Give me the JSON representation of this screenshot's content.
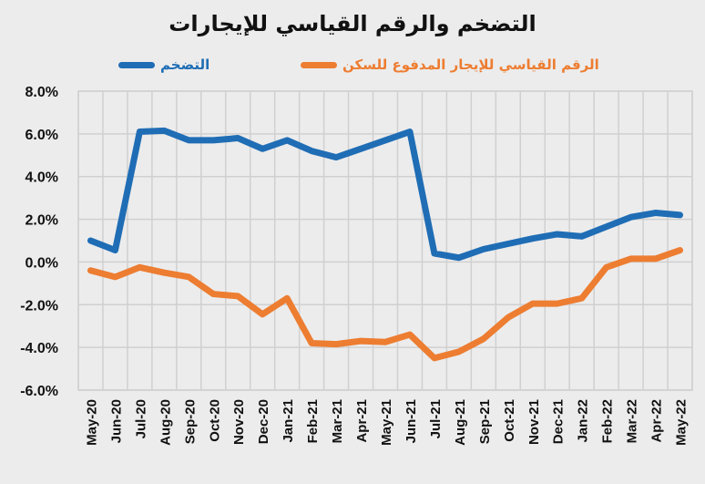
{
  "chart_data": {
    "type": "line",
    "title": "التضخم والرقم القياسي للإيجارات",
    "xlabel": "",
    "ylabel": "",
    "ylim": [
      -6,
      8
    ],
    "yticks": [
      8,
      6,
      4,
      2,
      0,
      -2,
      -4,
      -6
    ],
    "ytick_labels": [
      "8.0%",
      "6.0%",
      "4.0%",
      "2.0%",
      "0.0%",
      "-2.0%",
      "-4.0%",
      "-6.0%"
    ],
    "grid": true,
    "legend_position": "top",
    "categories": [
      "May-20",
      "Jun-20",
      "Jul-20",
      "Aug-20",
      "Sep-20",
      "Oct-20",
      "Nov-20",
      "Dec-20",
      "Jan-21",
      "Feb-21",
      "Mar-21",
      "Apr-21",
      "May-21",
      "Jun-21",
      "Jul-21",
      "Aug-21",
      "Sep-21",
      "Oct-21",
      "Nov-21",
      "Dec-21",
      "Jan-22",
      "Feb-22",
      "Mar-22",
      "Apr-22",
      "May-22"
    ],
    "series": [
      {
        "name": "التضخم",
        "color": "#1f6db5",
        "values": [
          1.0,
          0.55,
          6.1,
          6.15,
          5.7,
          5.7,
          5.8,
          5.3,
          5.7,
          5.2,
          4.9,
          5.3,
          5.7,
          6.1,
          0.4,
          0.2,
          0.6,
          0.85,
          1.1,
          1.3,
          1.2,
          1.65,
          2.1,
          2.3,
          2.2
        ]
      },
      {
        "name": "الرقم القياسي للإيجار المدفوع للسكن",
        "color": "#ed7d31",
        "values": [
          -0.4,
          -0.7,
          -0.25,
          -0.5,
          -0.7,
          -1.5,
          -1.6,
          -2.45,
          -1.7,
          -3.8,
          -3.85,
          -3.7,
          -3.75,
          -3.4,
          -4.5,
          -4.2,
          -3.6,
          -2.6,
          -1.95,
          -1.95,
          -1.7,
          -0.25,
          0.15,
          0.15,
          0.55
        ]
      }
    ]
  }
}
